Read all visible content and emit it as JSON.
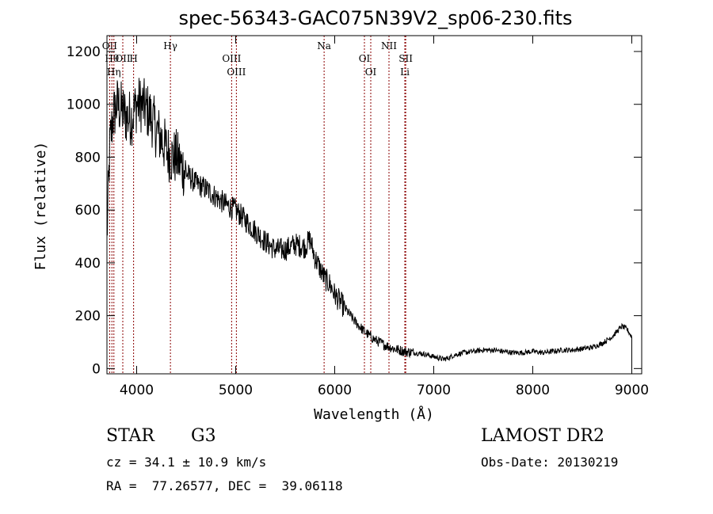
{
  "chart_data": {
    "type": "line",
    "title": "spec-56343-GAC075N39V2_sp06-230.fits",
    "xlabel": "Wavelength (Å)",
    "ylabel": "Flux (relative)",
    "xlim": [
      3700,
      9100
    ],
    "ylim": [
      -20,
      1260
    ],
    "xticks": [
      4000,
      5000,
      6000,
      7000,
      8000,
      9000
    ],
    "yticks": [
      0,
      200,
      400,
      600,
      800,
      1000,
      1200
    ],
    "grid": false,
    "series": [
      {
        "x": [
          3700,
          3730,
          3760,
          3800,
          3850,
          3900,
          3950,
          4000,
          4050,
          4100,
          4150,
          4200,
          4250,
          4300,
          4350,
          4400,
          4450,
          4500,
          4600,
          4700,
          4800,
          4900,
          5000,
          5100,
          5200,
          5300,
          5400,
          5500,
          5600,
          5700,
          5750,
          5800,
          5850,
          5900,
          5950,
          6000,
          6100,
          6200,
          6300,
          6400,
          6500,
          6600,
          6700,
          6800,
          6900,
          7000,
          7100,
          7150,
          7200,
          7300,
          7400,
          7500,
          7600,
          7700,
          7800,
          7900,
          8000,
          8100,
          8200,
          8300,
          8400,
          8500,
          8600,
          8700,
          8800,
          8850,
          8900,
          8950,
          9000
        ],
        "y": [
          500,
          850,
          950,
          1000,
          980,
          950,
          950,
          1000,
          1000,
          980,
          950,
          900,
          870,
          830,
          800,
          800,
          770,
          740,
          700,
          680,
          650,
          620,
          600,
          560,
          520,
          480,
          450,
          450,
          470,
          460,
          490,
          420,
          380,
          340,
          320,
          280,
          230,
          180,
          140,
          110,
          90,
          75,
          65,
          60,
          55,
          45,
          35,
          40,
          50,
          60,
          65,
          70,
          70,
          65,
          60,
          60,
          65,
          60,
          65,
          70,
          70,
          75,
          80,
          95,
          120,
          140,
          160,
          150,
          120
        ],
        "noise": true
      }
    ],
    "line_markers": [
      {
        "label": "OII",
        "x": 3727
      },
      {
        "label": "Hθ",
        "x": 3750
      },
      {
        "label": "Hη",
        "x": 3770
      },
      {
        "label": "OII",
        "x": 3860
      },
      {
        "label": "H",
        "x": 3969
      },
      {
        "label": "Hγ",
        "x": 4341
      },
      {
        "label": "OIII",
        "x": 4959
      },
      {
        "label": "OIII",
        "x": 5007
      },
      {
        "label": "Na",
        "x": 5893
      },
      {
        "label": "OI",
        "x": 6300
      },
      {
        "label": "OI",
        "x": 6364
      },
      {
        "label": "NII",
        "x": 6548
      },
      {
        "label": "SII",
        "x": 6717
      },
      {
        "label": "Li",
        "x": 6708
      }
    ]
  },
  "info": {
    "object_class": "STAR",
    "subclass": "G3",
    "redshift": "cz = 34.1 ± 10.9 km/s",
    "coords": "RA =  77.26577, DEC =  39.06118",
    "survey": "LAMOST DR2",
    "obs_date": "Obs-Date: 20130219"
  },
  "colors": {
    "spectrum": "#000000",
    "marker": "#8b0000"
  }
}
